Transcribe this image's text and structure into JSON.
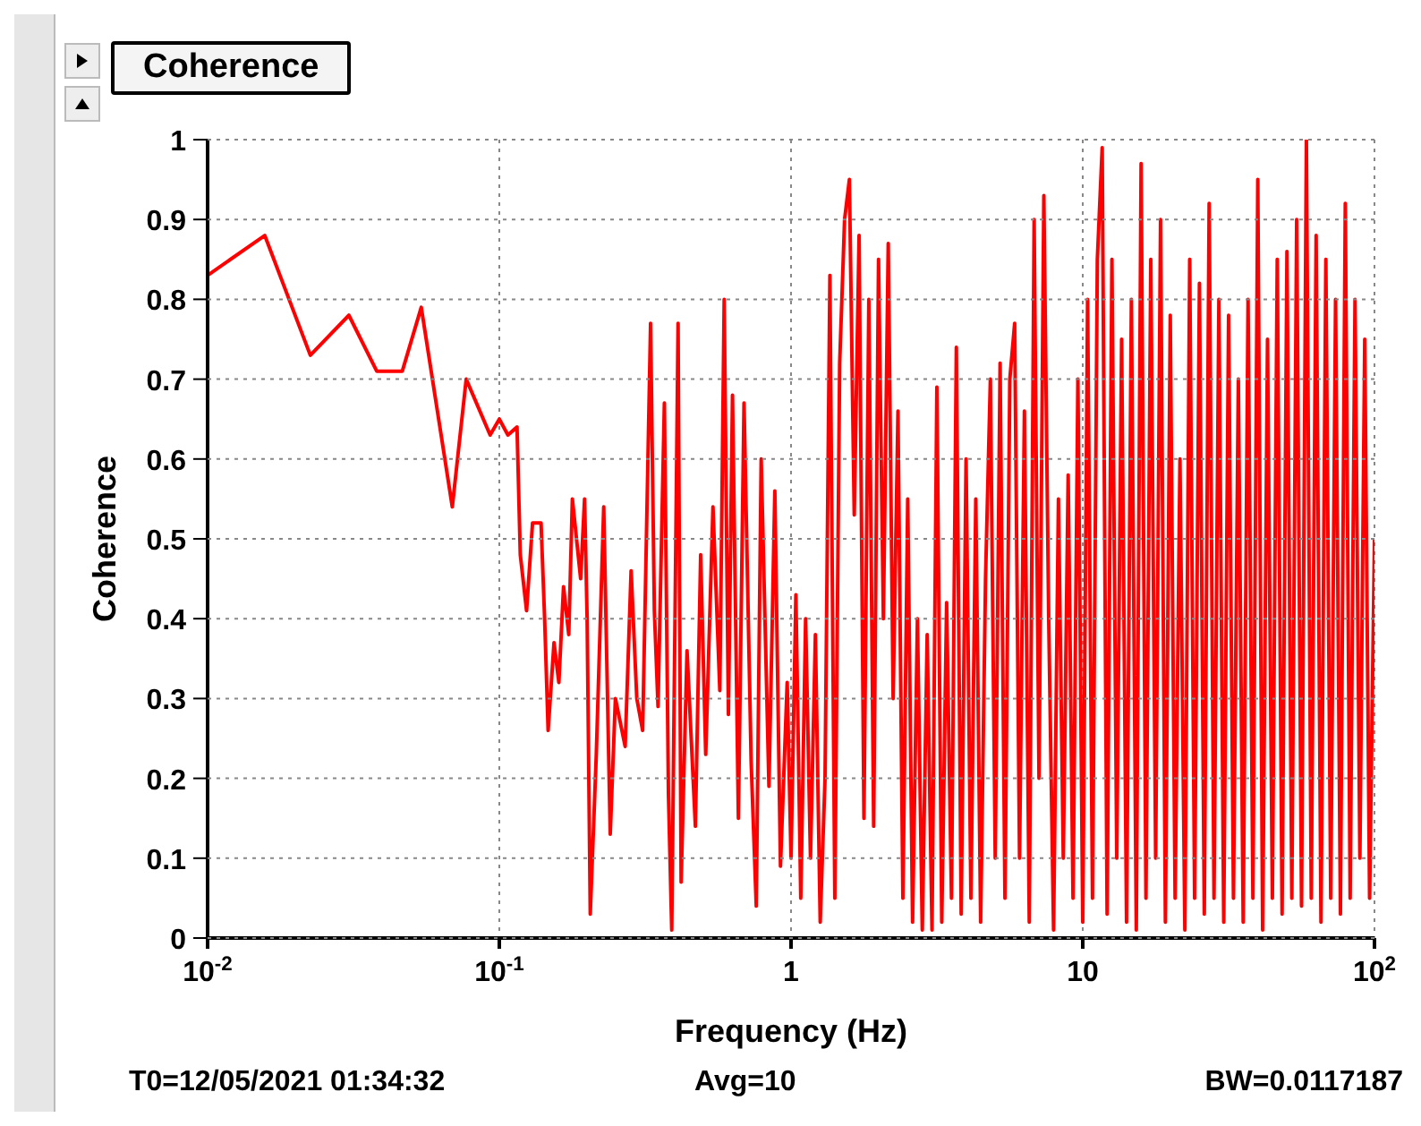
{
  "chart_data": {
    "type": "line",
    "title": "Coherence",
    "xlabel": "Frequency (Hz)",
    "ylabel": "Coherence",
    "annotations": [
      "T0=12/05/2021 01:34:32",
      "Avg=10",
      "BW=0.0117187"
    ],
    "log": "x",
    "grid": true,
    "marker": "none",
    "line_style": "solid",
    "xlim": [
      0.01,
      100
    ],
    "xticks": [
      {
        "value": 0.01,
        "label": "10$^{-2}$"
      },
      {
        "value": 0.1,
        "label": "10$^{-1}$"
      },
      1,
      10,
      {
        "value": 100,
        "label": "10$^{2}$"
      }
    ],
    "ylim": [
      0,
      1
    ],
    "yticks": [
      0,
      0.1,
      0.2,
      0.3,
      0.4,
      0.5,
      0.6,
      0.7,
      0.8,
      0.9,
      1
    ],
    "series": [
      {
        "color": "#ff0000",
        "x": [
          0.01,
          0.0157,
          0.0225,
          0.0305,
          0.038,
          0.0465,
          0.054,
          0.069,
          0.077,
          0.093,
          0.1,
          0.107,
          0.115,
          0.118,
          0.124,
          0.13,
          0.139,
          0.143,
          0.147,
          0.154,
          0.16,
          0.166,
          0.173,
          0.178,
          0.19,
          0.196,
          0.2,
          0.205,
          0.215,
          0.228,
          0.24,
          0.25,
          0.27,
          0.283,
          0.296,
          0.31,
          0.33,
          0.34,
          0.35,
          0.368,
          0.38,
          0.39,
          0.41,
          0.42,
          0.44,
          0.47,
          0.49,
          0.51,
          0.54,
          0.57,
          0.59,
          0.61,
          0.63,
          0.66,
          0.69,
          0.73,
          0.76,
          0.79,
          0.84,
          0.88,
          0.92,
          0.97,
          1.0,
          1.039,
          1.08,
          1.122,
          1.166,
          1.212,
          1.259,
          1.308,
          1.359,
          1.413,
          1.468,
          1.526,
          1.585,
          1.647,
          1.711,
          1.778,
          1.848,
          1.92,
          1.995,
          2.073,
          2.154,
          2.239,
          2.326,
          2.418,
          2.512,
          2.61,
          2.712,
          2.818,
          2.929,
          3.043,
          3.162,
          3.286,
          3.415,
          3.548,
          3.687,
          3.831,
          3.981,
          4.137,
          4.299,
          4.467,
          4.642,
          4.823,
          5.012,
          5.208,
          5.412,
          5.623,
          5.843,
          6.072,
          6.31,
          6.557,
          6.813,
          7.08,
          7.356,
          7.644,
          7.943,
          8.254,
          8.577,
          8.913,
          9.261,
          9.624,
          10,
          10.39,
          10.8,
          11.22,
          11.66,
          12.12,
          12.59,
          13.08,
          13.59,
          14.13,
          14.68,
          15.26,
          15.85,
          16.47,
          17.11,
          17.78,
          18.48,
          19.2,
          19.95,
          20.73,
          21.54,
          22.39,
          23.26,
          24.18,
          25.12,
          26.1,
          27.12,
          28.18,
          29.29,
          30.43,
          31.62,
          32.86,
          34.15,
          35.48,
          36.87,
          38.31,
          39.81,
          41.37,
          42.99,
          44.67,
          46.42,
          48.23,
          50.12,
          52.08,
          54.12,
          56.23,
          58.43,
          60.72,
          63.1,
          65.57,
          68.13,
          70.8,
          73.56,
          76.44,
          79.43,
          82.54,
          85.77,
          89.13,
          92.61,
          96.24,
          100
        ],
        "values": [
          0.83,
          0.88,
          0.73,
          0.78,
          0.71,
          0.71,
          0.79,
          0.54,
          0.7,
          0.63,
          0.65,
          0.63,
          0.64,
          0.48,
          0.41,
          0.52,
          0.52,
          0.4,
          0.26,
          0.37,
          0.32,
          0.44,
          0.38,
          0.55,
          0.45,
          0.55,
          0.4,
          0.03,
          0.23,
          0.54,
          0.13,
          0.3,
          0.24,
          0.46,
          0.3,
          0.26,
          0.77,
          0.41,
          0.29,
          0.67,
          0.18,
          0.01,
          0.77,
          0.07,
          0.36,
          0.14,
          0.48,
          0.23,
          0.54,
          0.31,
          0.8,
          0.28,
          0.68,
          0.15,
          0.67,
          0.22,
          0.04,
          0.6,
          0.19,
          0.56,
          0.09,
          0.32,
          0.1,
          0.43,
          0.05,
          0.4,
          0.1,
          0.38,
          0.02,
          0.2,
          0.83,
          0.05,
          0.72,
          0.9,
          0.95,
          0.53,
          0.88,
          0.15,
          0.8,
          0.14,
          0.85,
          0.4,
          0.87,
          0.3,
          0.66,
          0.05,
          0.55,
          0.02,
          0.4,
          0.01,
          0.38,
          0.01,
          0.69,
          0.02,
          0.42,
          0.05,
          0.74,
          0.03,
          0.6,
          0.05,
          0.55,
          0.02,
          0.45,
          0.7,
          0.1,
          0.72,
          0.05,
          0.7,
          0.77,
          0.1,
          0.66,
          0.02,
          0.9,
          0.2,
          0.93,
          0.4,
          0.01,
          0.55,
          0.1,
          0.58,
          0.05,
          0.7,
          0.02,
          0.8,
          0.05,
          0.85,
          0.99,
          0.03,
          0.85,
          0.1,
          0.75,
          0.02,
          0.8,
          0.01,
          0.97,
          0.05,
          0.85,
          0.1,
          0.9,
          0.02,
          0.78,
          0.05,
          0.6,
          0.01,
          0.85,
          0.05,
          0.82,
          0.03,
          0.92,
          0.05,
          0.8,
          0.02,
          0.78,
          0.05,
          0.7,
          0.02,
          0.8,
          0.05,
          0.95,
          0.01,
          0.75,
          0.05,
          0.85,
          0.03,
          0.86,
          0.05,
          0.9,
          0.04,
          1.0,
          0.05,
          0.88,
          0.02,
          0.85,
          0.05,
          0.8,
          0.03,
          0.92,
          0.05,
          0.8,
          0.1,
          0.75,
          0.05,
          0.5
        ]
      }
    ]
  }
}
